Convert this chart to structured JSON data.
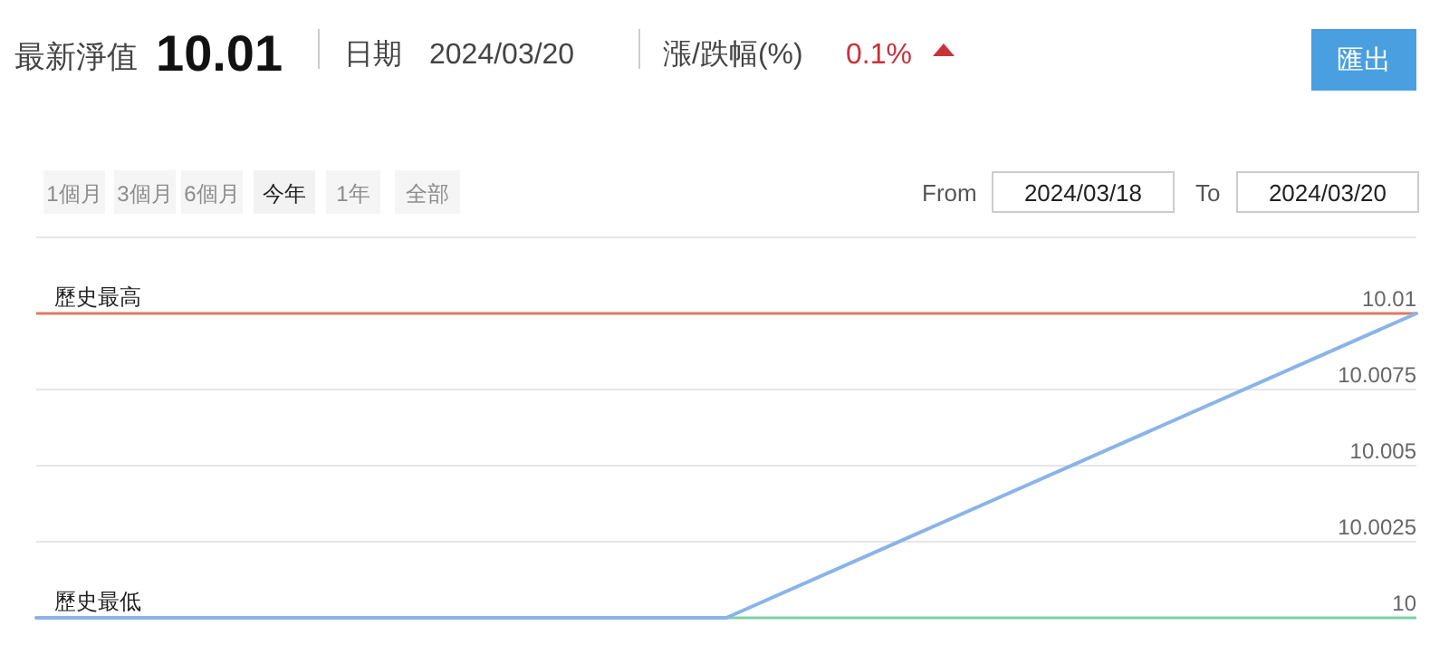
{
  "chart_data": {
    "type": "line",
    "categories": [
      null,
      null,
      null
    ],
    "series": [
      {
        "color": "#8ab4e8",
        "values": [
          10,
          10,
          10.01
        ]
      }
    ],
    "ylim": [
      10,
      10.0125
    ],
    "yticks": [
      10,
      10.0025,
      10.005,
      10.0075,
      10.01,
      {
        "value": 10.0125,
        "label": null
      }
    ],
    "grid": "y",
    "tick_labels": "y",
    "marker": "none",
    "line_style": "solid",
    "ref_lines": [
      {
        "axis": "y",
        "value": 10.01,
        "label": "歷史最高",
        "color": "#e07a63"
      },
      {
        "axis": "y",
        "value": 10,
        "label": "歷史最低",
        "color": "#7fcfa8"
      }
    ],
    "annotations": [
      "最新淨值",
      "10.01",
      "日期",
      "2024/03/20",
      "漲/跌幅(%)",
      "0.1%",
      "匯出",
      "1個月",
      "3個月",
      "6個月",
      "今年",
      "1年",
      "全部",
      "From",
      "2024/03/18",
      "To",
      "2024/03/20"
    ]
  }
}
